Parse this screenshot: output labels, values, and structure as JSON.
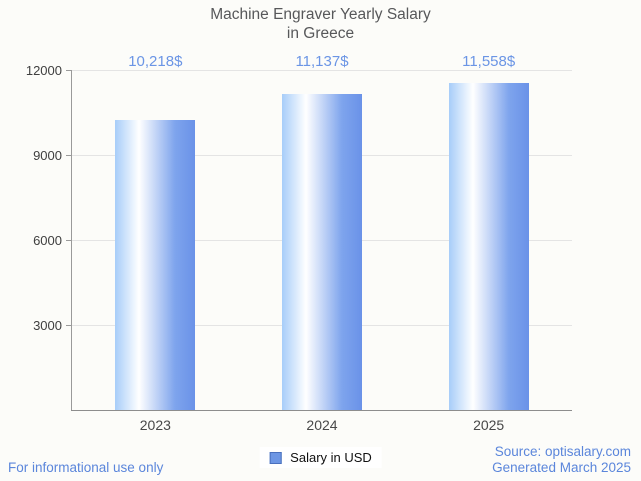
{
  "header": {
    "title_line1": "Machine Engraver Yearly Salary",
    "title_line2": "in Greece"
  },
  "chart_data": {
    "type": "bar",
    "title": "Machine Engraver Yearly Salary in Greece",
    "categories": [
      "2023",
      "2024",
      "2025"
    ],
    "series": [
      {
        "name": "Salary in USD",
        "values": [
          10218,
          11137,
          11558
        ]
      }
    ],
    "value_labels": [
      "10,218$",
      "11,137$",
      "11,558$"
    ],
    "ylim": [
      0,
      12000
    ],
    "yticks": [
      3000,
      6000,
      9000,
      12000
    ],
    "ytick_labels": [
      "3000",
      "6000",
      "9000",
      "12000"
    ],
    "grid": true,
    "legend_position": "bottom"
  },
  "legend": {
    "label": "Salary in USD",
    "swatch_color": "#6d96e4"
  },
  "footer": {
    "note": "For informational use only",
    "source_line1": "Source: optisalary.com",
    "source_line2": "Generated March 2025"
  },
  "colors": {
    "background": "#fcfcf9",
    "bar_left": "#a7cdf9",
    "bar_mid": "#ffffff",
    "bar_right": "#6a92e8",
    "value_label": "#6b95e5",
    "footer_text": "#5b86db",
    "title_text": "#57585a",
    "gridline": "#e4e4e4",
    "axis": "#9a9a9a"
  }
}
